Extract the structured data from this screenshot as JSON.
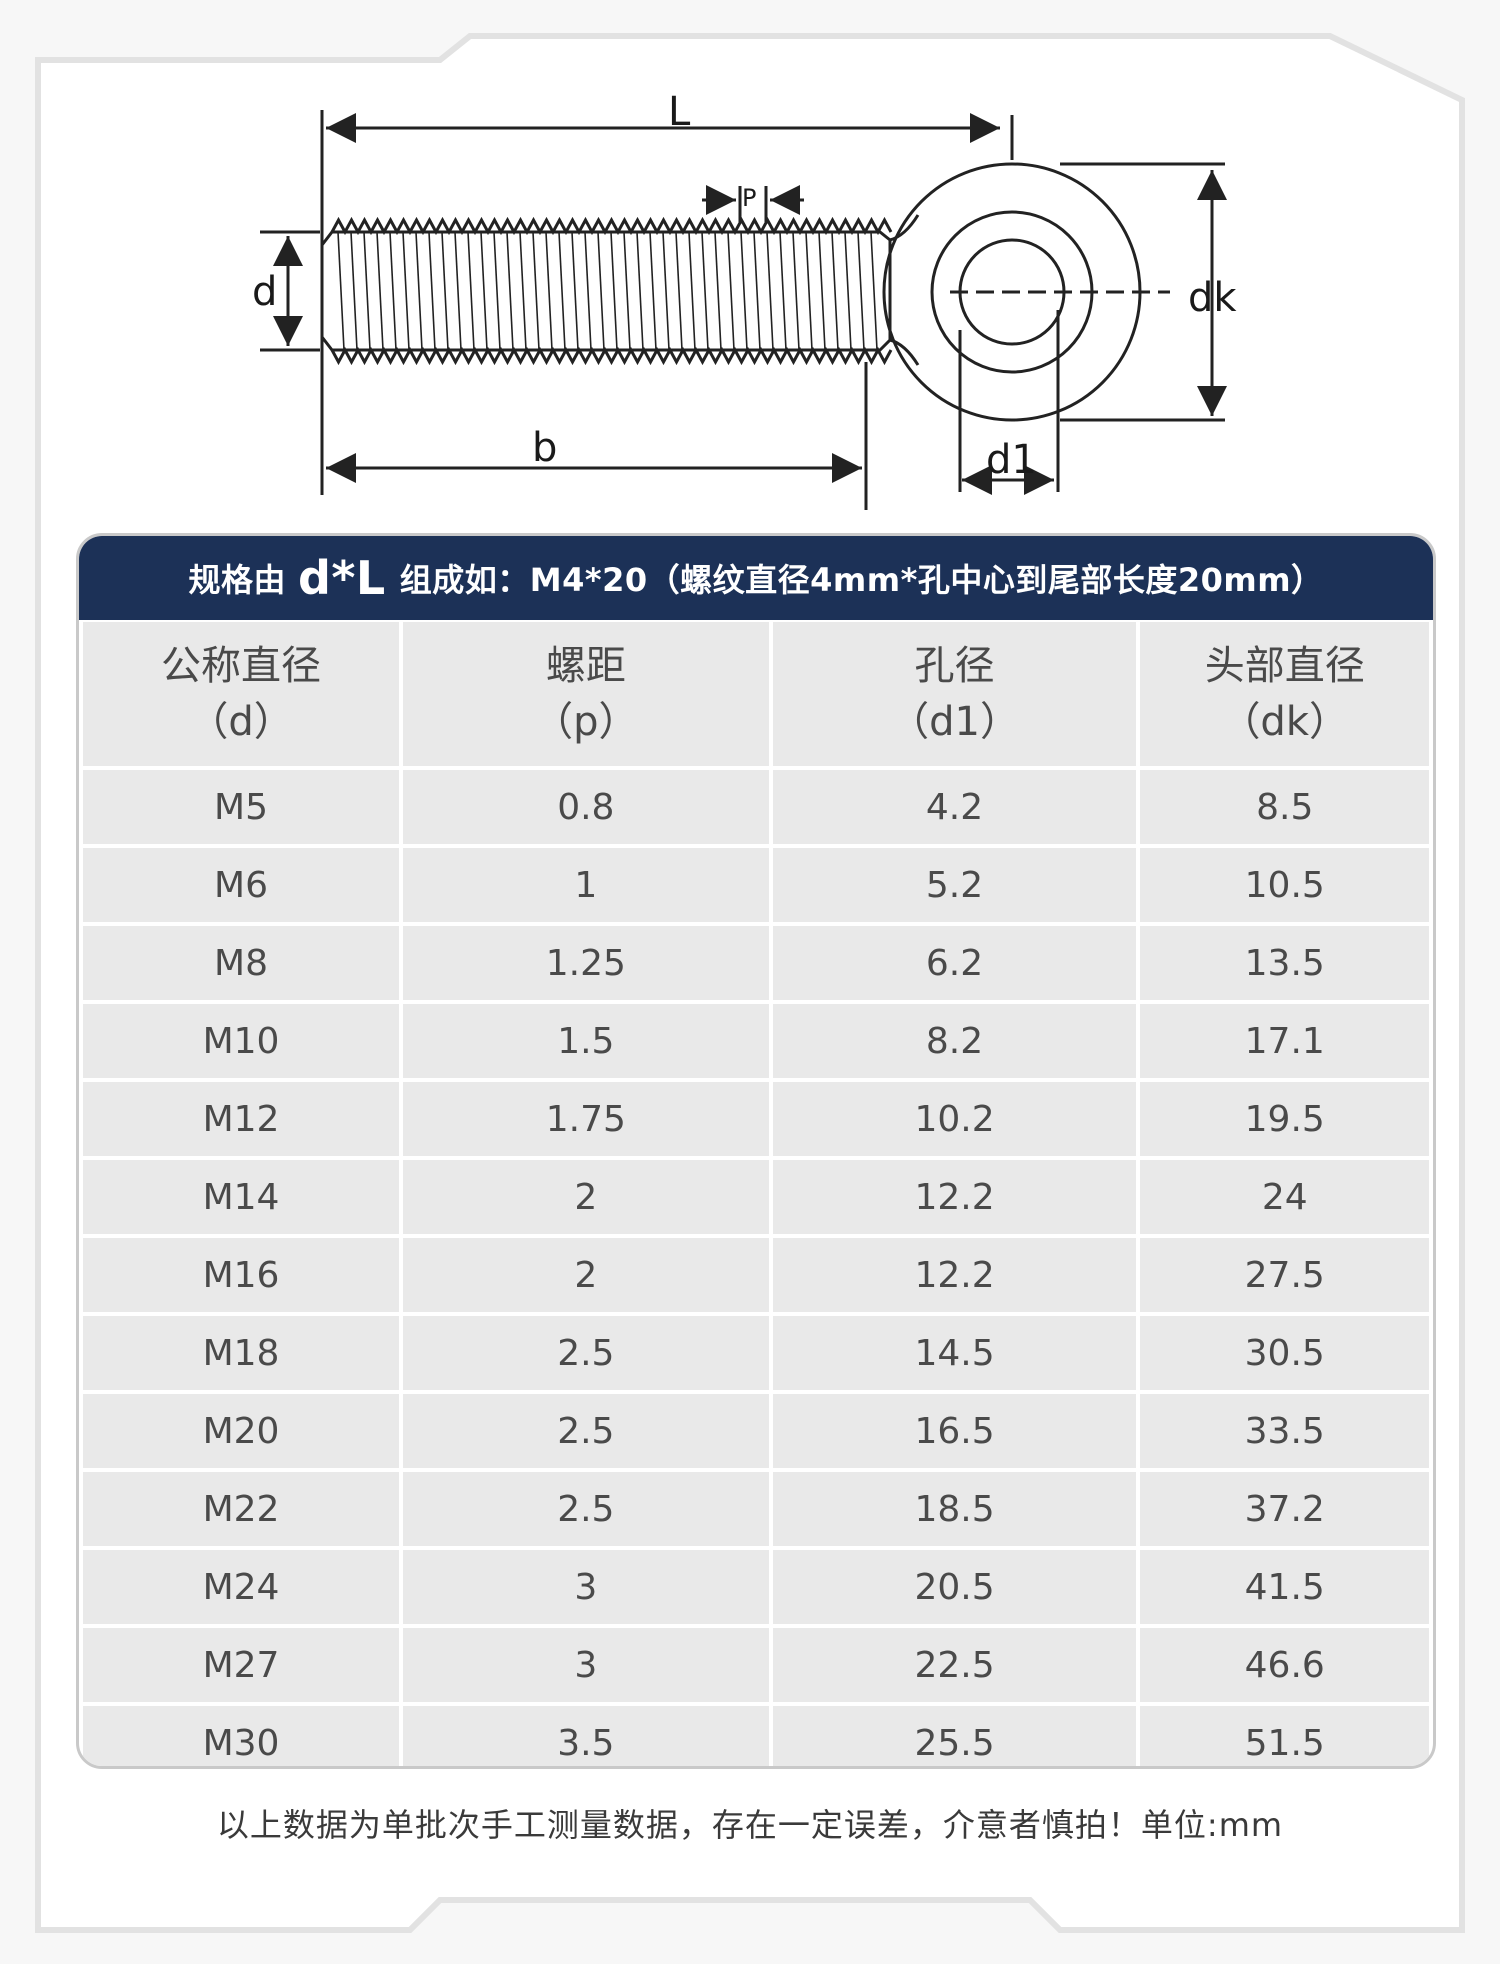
{
  "diagram": {
    "labels": {
      "L": "L",
      "p": "P",
      "d": "d",
      "dk": "dk",
      "b": "b",
      "d1": "d1"
    }
  },
  "banner": {
    "prefix": "规格由",
    "formula": "d*L",
    "suffix": "组成如：M4*20（螺纹直径4mm*孔中心到尾部长度20mm）"
  },
  "table": {
    "headers": [
      {
        "name": "公称直径",
        "symbol": "（d）"
      },
      {
        "name": "螺距",
        "symbol": "（p）"
      },
      {
        "name": "孔径",
        "symbol": "（d1）"
      },
      {
        "name": "头部直径",
        "symbol": "（dk）"
      }
    ],
    "rows": [
      [
        "M5",
        "0.8",
        "4.2",
        "8.5"
      ],
      [
        "M6",
        "1",
        "5.2",
        "10.5"
      ],
      [
        "M8",
        "1.25",
        "6.2",
        "13.5"
      ],
      [
        "M10",
        "1.5",
        "8.2",
        "17.1"
      ],
      [
        "M12",
        "1.75",
        "10.2",
        "19.5"
      ],
      [
        "M14",
        "2",
        "12.2",
        "24"
      ],
      [
        "M16",
        "2",
        "12.2",
        "27.5"
      ],
      [
        "M18",
        "2.5",
        "14.5",
        "30.5"
      ],
      [
        "M20",
        "2.5",
        "16.5",
        "33.5"
      ],
      [
        "M22",
        "2.5",
        "18.5",
        "37.2"
      ],
      [
        "M24",
        "3",
        "20.5",
        "41.5"
      ],
      [
        "M27",
        "3",
        "22.5",
        "46.6"
      ],
      [
        "M30",
        "3.5",
        "25.5",
        "51.5"
      ]
    ]
  },
  "footnote": "以上数据为单批次手工测量数据，存在一定误差，介意者慎拍！单位:mm",
  "colors": {
    "banner_bg": "#1c3157",
    "cell_bg": "#e9e9e9",
    "page_bg": "#f7f7f7"
  }
}
